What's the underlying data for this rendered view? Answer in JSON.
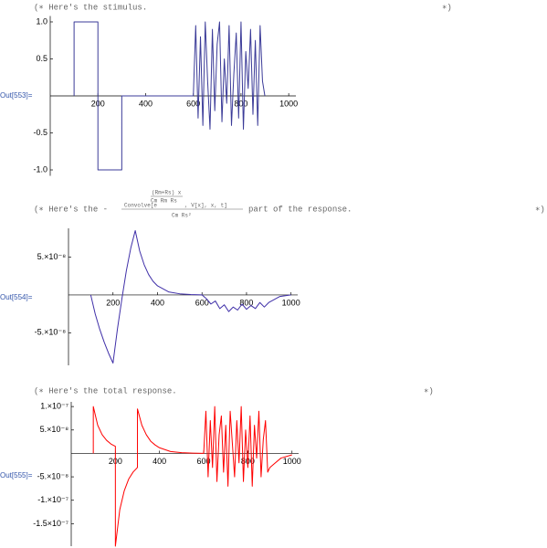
{
  "chart_data": [
    {
      "type": "line",
      "label": "Out[553]=",
      "comment": "(∗ Here's the stimulus.",
      "comment_end": "∗)",
      "x": [
        100,
        100,
        200,
        200,
        300,
        300,
        600,
        610,
        620,
        630,
        640,
        650,
        660,
        670,
        680,
        690,
        700,
        710,
        720,
        730,
        740,
        750,
        760,
        770,
        780,
        790,
        800,
        810,
        820,
        830,
        840,
        850,
        860,
        870,
        880,
        890,
        900
      ],
      "series": [
        {
          "color": "#3b3b98",
          "values": [
            0,
            1,
            1,
            -1,
            -1,
            0,
            0,
            0.95,
            -0.3,
            0.8,
            -0.4,
            1.0,
            0.2,
            -0.45,
            0.9,
            -0.2,
            0.7,
            1.0,
            -0.35,
            0.5,
            -0.1,
            0.95,
            -0.4,
            0.3,
            0.85,
            -0.3,
            1.0,
            -0.45,
            0.6,
            0.1,
            0.9,
            -0.25,
            0.75,
            -0.4,
            0.95,
            0.2,
            0
          ]
        }
      ],
      "xlim": [
        0,
        1030
      ],
      "ylim": [
        -1.08,
        1.08
      ],
      "xticks": [
        200,
        400,
        600,
        800,
        1000
      ],
      "yticks": [
        {
          "value": -1.0,
          "label": "-1.0"
        },
        -0.5,
        0.5,
        {
          "value": 1.0,
          "label": "1.0"
        }
      ]
    },
    {
      "type": "line",
      "label": "Out[554]=",
      "comment": "(∗ Here's the -",
      "formula_head": "Convolve[e",
      "formula_exp_num": "(Rm+Rs) x",
      "formula_exp_den": "Cm Rm Rs",
      "formula_tail": ", V[x], x, t]",
      "formula_den": "Cm Rs²",
      "comment_rest": "part of the response.",
      "comment_end": "∗)",
      "x": [
        100,
        120,
        140,
        160,
        180,
        200,
        220,
        240,
        260,
        280,
        300,
        320,
        340,
        360,
        380,
        400,
        450,
        500,
        550,
        600,
        620,
        640,
        660,
        680,
        700,
        720,
        740,
        760,
        780,
        800,
        820,
        840,
        860,
        880,
        900,
        950,
        1000
      ],
      "series": [
        {
          "color": "#3f2fa8",
          "values": [
            0,
            -2.5e-08,
            -4.5e-08,
            -6.2e-08,
            -7.7e-08,
            -9e-08,
            -4.5e-08,
            -5e-09,
            3.2e-08,
            6.2e-08,
            8.5e-08,
            5.8e-08,
            4e-08,
            2.7e-08,
            1.8e-08,
            1.2e-08,
            4e-09,
            1.5e-09,
            5e-10,
            0,
            -5e-09,
            -1.2e-08,
            -8e-09,
            -1.8e-08,
            -1.3e-08,
            -2.2e-08,
            -1.6e-08,
            -2e-08,
            -1.2e-08,
            -1.9e-08,
            -1.4e-08,
            -1.8e-08,
            -1e-08,
            -1.6e-08,
            -1e-08,
            -2e-09,
            0
          ]
        }
      ],
      "xlim": [
        0,
        1030
      ],
      "ylim": [
        -9.3e-08,
        8.8e-08
      ],
      "xticks": [
        200,
        400,
        600,
        800,
        1000
      ],
      "yticks": [
        {
          "value": -5e-08,
          "label": "-5.×10⁻⁸"
        },
        {
          "value": 5e-08,
          "label": "5.×10⁻⁸"
        }
      ]
    },
    {
      "type": "line",
      "label": "Out[555]=",
      "comment": "(∗ Here's the total response.",
      "comment_end": "∗)",
      "x": [
        100,
        100,
        120,
        140,
        160,
        180,
        200,
        200,
        220,
        240,
        260,
        280,
        300,
        300,
        320,
        340,
        360,
        380,
        400,
        450,
        500,
        550,
        600,
        610,
        620,
        630,
        640,
        650,
        660,
        670,
        680,
        690,
        700,
        710,
        720,
        730,
        740,
        750,
        760,
        770,
        780,
        790,
        800,
        810,
        820,
        830,
        840,
        850,
        860,
        870,
        880,
        890,
        900,
        950,
        1000
      ],
      "series": [
        {
          "color": "#ff0000",
          "values": [
            0,
            1e-07,
            6e-08,
            4e-08,
            2.8e-08,
            2e-08,
            1.5e-08,
            -1.98e-07,
            -1.2e-07,
            -8e-08,
            -5.5e-08,
            -4e-08,
            -3e-08,
            9.5e-08,
            6e-08,
            4e-08,
            2.6e-08,
            1.8e-08,
            1.2e-08,
            4e-09,
            1.5e-09,
            5e-10,
            0,
            9e-08,
            -5e-08,
            7e-08,
            -3e-08,
            1e-07,
            -6e-08,
            4e-08,
            8e-08,
            -4e-08,
            6e-08,
            -7e-08,
            9e-08,
            2e-08,
            -5e-08,
            7e-08,
            -2e-08,
            1e-07,
            -6e-08,
            5e-08,
            -3e-08,
            8e-08,
            -7e-08,
            6e-08,
            -1e-08,
            9e-08,
            -5e-08,
            3e-08,
            7e-08,
            -4e-08,
            -3e-08,
            -1e-08,
            -3e-09
          ]
        }
      ],
      "xlim": [
        0,
        1030
      ],
      "ylim": [
        -1.98e-07,
        1.1e-07
      ],
      "xticks": [
        200,
        400,
        600,
        800,
        1000
      ],
      "yticks": [
        {
          "value": -1.5e-07,
          "label": "-1.5×10⁻⁷"
        },
        {
          "value": -1e-07,
          "label": "-1.×10⁻⁷"
        },
        {
          "value": -5e-08,
          "label": "-5.×10⁻⁸"
        },
        {
          "value": 5e-08,
          "label": "5.×10⁻⁸"
        },
        {
          "value": 1e-07,
          "label": "1.×10⁻⁷"
        }
      ]
    }
  ]
}
